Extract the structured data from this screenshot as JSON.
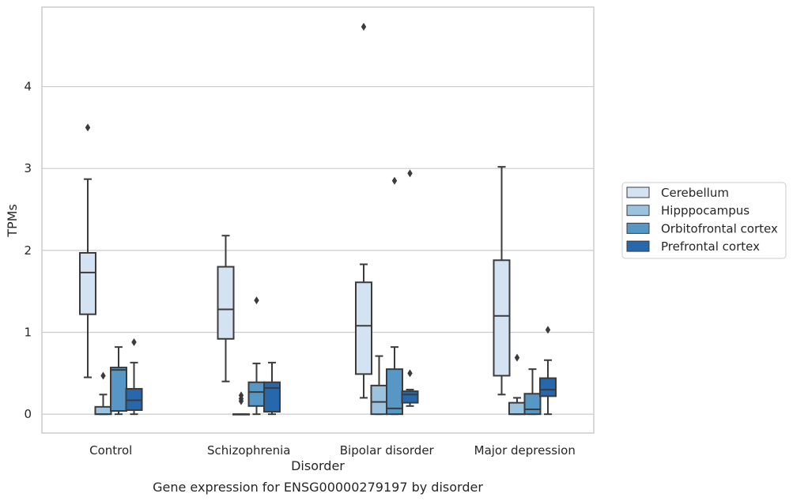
{
  "chart_data": {
    "type": "box",
    "title": "",
    "caption": "Gene expression for ENSG00000279197 by disorder",
    "xlabel": "Disorder",
    "ylabel": "TPMs",
    "ylim": [
      -0.23,
      4.97
    ],
    "yticks": [
      0,
      1,
      2,
      3,
      4
    ],
    "grid": "horizontal",
    "legend_position": "right",
    "categories": [
      "Control",
      "Schizophrenia",
      "Bipolar disorder",
      "Major depression"
    ],
    "series": [
      {
        "name": "Cerebellum",
        "color": "#d4e3f2",
        "boxes": [
          {
            "whisker_low": 0.45,
            "q1": 1.22,
            "median": 1.73,
            "q3": 1.97,
            "whisker_high": 2.87,
            "outliers": [
              3.5
            ]
          },
          {
            "whisker_low": 0.4,
            "q1": 0.92,
            "median": 1.28,
            "q3": 1.8,
            "whisker_high": 2.18,
            "outliers": []
          },
          {
            "whisker_low": 0.2,
            "q1": 0.49,
            "median": 1.08,
            "q3": 1.61,
            "whisker_high": 1.83,
            "outliers": [
              4.73
            ]
          },
          {
            "whisker_low": 0.24,
            "q1": 0.47,
            "median": 1.2,
            "q3": 1.88,
            "whisker_high": 3.02,
            "outliers": []
          }
        ]
      },
      {
        "name": "Hipppocampus",
        "color": "#9cc3de",
        "boxes": [
          {
            "whisker_low": 0.0,
            "q1": 0.0,
            "median": 0.0,
            "q3": 0.09,
            "whisker_high": 0.24,
            "outliers": [
              0.47
            ]
          },
          {
            "whisker_low": 0.0,
            "q1": 0.0,
            "median": 0.0,
            "q3": 0.0,
            "whisker_high": 0.0,
            "outliers": [
              0.16,
              0.19,
              0.23
            ]
          },
          {
            "whisker_low": 0.0,
            "q1": 0.0,
            "median": 0.15,
            "q3": 0.35,
            "whisker_high": 0.71,
            "outliers": []
          },
          {
            "whisker_low": 0.0,
            "q1": 0.0,
            "median": 0.0,
            "q3": 0.14,
            "whisker_high": 0.2,
            "outliers": [
              0.69
            ]
          }
        ]
      },
      {
        "name": "Orbitofrontal cortex",
        "color": "#5697c6",
        "boxes": [
          {
            "whisker_low": 0.0,
            "q1": 0.04,
            "median": 0.54,
            "q3": 0.57,
            "whisker_high": 0.82,
            "outliers": []
          },
          {
            "whisker_low": 0.0,
            "q1": 0.1,
            "median": 0.27,
            "q3": 0.39,
            "whisker_high": 0.62,
            "outliers": [
              1.39
            ]
          },
          {
            "whisker_low": 0.0,
            "q1": 0.0,
            "median": 0.07,
            "q3": 0.55,
            "whisker_high": 0.82,
            "outliers": [
              2.85
            ]
          },
          {
            "whisker_low": 0.0,
            "q1": 0.0,
            "median": 0.06,
            "q3": 0.25,
            "whisker_high": 0.55,
            "outliers": []
          }
        ]
      },
      {
        "name": "Prefrontal cortex",
        "color": "#2668ab",
        "boxes": [
          {
            "whisker_low": 0.0,
            "q1": 0.05,
            "median": 0.17,
            "q3": 0.31,
            "whisker_high": 0.63,
            "outliers": [
              0.88
            ]
          },
          {
            "whisker_low": 0.0,
            "q1": 0.03,
            "median": 0.32,
            "q3": 0.39,
            "whisker_high": 0.63,
            "outliers": []
          },
          {
            "whisker_low": 0.1,
            "q1": 0.14,
            "median": 0.24,
            "q3": 0.28,
            "whisker_high": 0.3,
            "outliers": [
              0.5,
              2.94
            ]
          },
          {
            "whisker_low": 0.0,
            "q1": 0.22,
            "median": 0.3,
            "q3": 0.44,
            "whisker_high": 0.66,
            "outliers": [
              1.03
            ]
          }
        ]
      }
    ]
  }
}
